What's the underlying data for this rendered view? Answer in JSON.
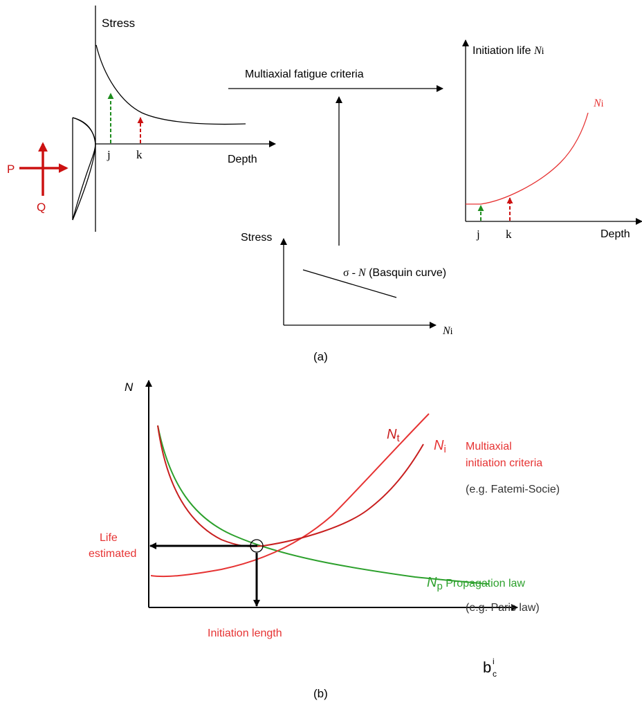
{
  "panel_a": {
    "contact": {
      "label_p": "P",
      "label_q": "Q",
      "load_color": "#cc1111"
    },
    "stress_plot": {
      "y_label": "Stress",
      "x_label": "Depth",
      "point_j": "j",
      "point_k": "k"
    },
    "criteria_label": "Multiaxial fatigue criteria",
    "life_plot": {
      "y_label_prefix": "Initiation life ",
      "y_label_sym": "N",
      "y_label_sub": "i",
      "curve_label_sym": "N",
      "curve_label_sub": "i",
      "x_label": "Depth",
      "point_j": "j",
      "point_k": "k"
    },
    "basquin_plot": {
      "y_label": "Stress",
      "curve_label_sigma": "σ - ",
      "curve_label_sym": "N",
      "curve_label_rest": " (Basquin curve)",
      "x_label_sym": "N",
      "x_label_sub": "i"
    },
    "caption": "(a)"
  },
  "panel_b": {
    "y_label": "N",
    "x_label_main": "b",
    "x_label_sub": "c",
    "x_label_sup": "i",
    "nt_sym": "N",
    "nt_sub": "t",
    "ni_sym": "N",
    "ni_sub": "i",
    "ni_text_line1": "Multiaxial",
    "ni_text_line2": "initiation criteria",
    "ni_example": "(e.g. Fatemi-Socie)",
    "np_sym": "N",
    "np_sub": "p",
    "np_text": " Propagation law",
    "np_example": "(e.g. Paris law)",
    "life_line1": "Life",
    "life_line2": "estimated",
    "initiation_length": "Initiation length",
    "caption": "(b)",
    "colors": {
      "red": "#e63333",
      "green": "#2ca02c",
      "dark_red": "#c81e1e"
    }
  }
}
